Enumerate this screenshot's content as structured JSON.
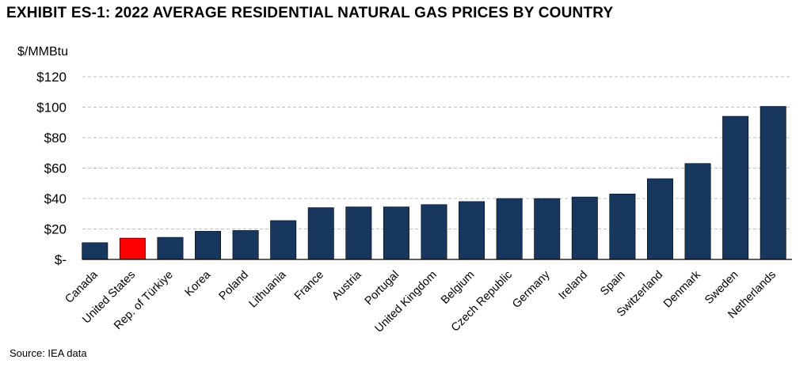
{
  "title": "EXHIBIT ES-1: 2022 AVERAGE RESIDENTIAL NATURAL GAS PRICES BY COUNTRY",
  "source": "Source: IEA data",
  "colors": {
    "bar": "#17375E",
    "highlight": "#FF0000",
    "grid": "#BFBFBF",
    "axis": "#000000"
  },
  "chart_data": {
    "type": "bar",
    "ylabel": "$/MMBtu",
    "ylim": [
      0,
      120
    ],
    "yticks": [
      0,
      20,
      40,
      60,
      80,
      100,
      120
    ],
    "ytick_labels": [
      "$-",
      "$20",
      "$40",
      "$60",
      "$80",
      "$100",
      "$120"
    ],
    "grid": true,
    "categories": [
      "Canada",
      "United States",
      "Rep. of Türkiye",
      "Korea",
      "Poland",
      "Lithuania",
      "France",
      "Austria",
      "Portugal",
      "United Kingdom",
      "Belgium",
      "Czech Republic",
      "Germany",
      "Ireland",
      "Spain",
      "Switzerland",
      "Denmark",
      "Sweden",
      "Netherlands"
    ],
    "values": [
      11,
      14,
      14.5,
      18.5,
      19,
      25.5,
      34,
      34.5,
      34.5,
      36,
      38,
      40,
      40,
      41,
      43,
      53,
      63,
      94,
      100.5
    ],
    "highlight": "United States"
  }
}
